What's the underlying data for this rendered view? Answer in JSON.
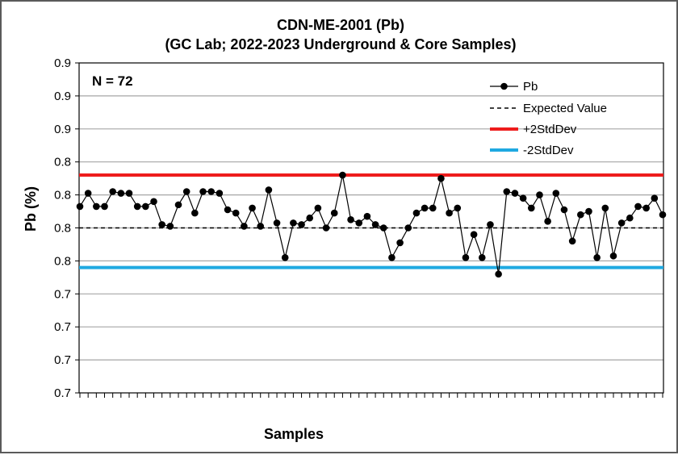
{
  "chart_data": {
    "type": "line",
    "title": "CDN-ME-2001 (Pb)",
    "subtitle": "(GC Lab; 2022-2023 Underground & Core Samples)",
    "xlabel": "Samples",
    "ylabel": "Pb (%)",
    "annotation": "N = 72",
    "ylim": [
      0.7,
      0.9
    ],
    "yticks": [
      0.7,
      0.72,
      0.74,
      0.76,
      0.78,
      0.8,
      0.82,
      0.84,
      0.86,
      0.88,
      0.9
    ],
    "ytick_labels": [
      "0.7",
      "0.7",
      "0.7",
      "0.7",
      "0.8",
      "0.8",
      "0.8",
      "0.8",
      "0.9",
      "0.9",
      "0.9"
    ],
    "grid": true,
    "legend_position": "top-right",
    "expected_value": 0.8,
    "plus_2sd": 0.832,
    "minus_2sd": 0.776,
    "series": [
      {
        "name": "Pb",
        "color": "#000000",
        "values": [
          0.813,
          0.821,
          0.813,
          0.813,
          0.822,
          0.821,
          0.821,
          0.813,
          0.813,
          0.816,
          0.802,
          0.801,
          0.814,
          0.822,
          0.809,
          0.822,
          0.822,
          0.821,
          0.811,
          0.809,
          0.801,
          0.812,
          0.801,
          0.823,
          0.803,
          0.782,
          0.803,
          0.802,
          0.806,
          0.812,
          0.8,
          0.809,
          0.832,
          0.805,
          0.803,
          0.807,
          0.802,
          0.8,
          0.782,
          0.791,
          0.8,
          0.809,
          0.812,
          0.812,
          0.83,
          0.809,
          0.812,
          0.782,
          0.796,
          0.782,
          0.802,
          0.772,
          0.822,
          0.821,
          0.818,
          0.812,
          0.82,
          0.804,
          0.821,
          0.811,
          0.792,
          0.808,
          0.81,
          0.782,
          0.812,
          0.783,
          0.803,
          0.806,
          0.813,
          0.812,
          0.818,
          0.808
        ]
      },
      {
        "name": "Expected Value",
        "color": "#000000"
      },
      {
        "name": "+2StdDev",
        "color": "#ee1c1c"
      },
      {
        "name": "-2StdDev",
        "color": "#1fa9e1"
      }
    ]
  }
}
